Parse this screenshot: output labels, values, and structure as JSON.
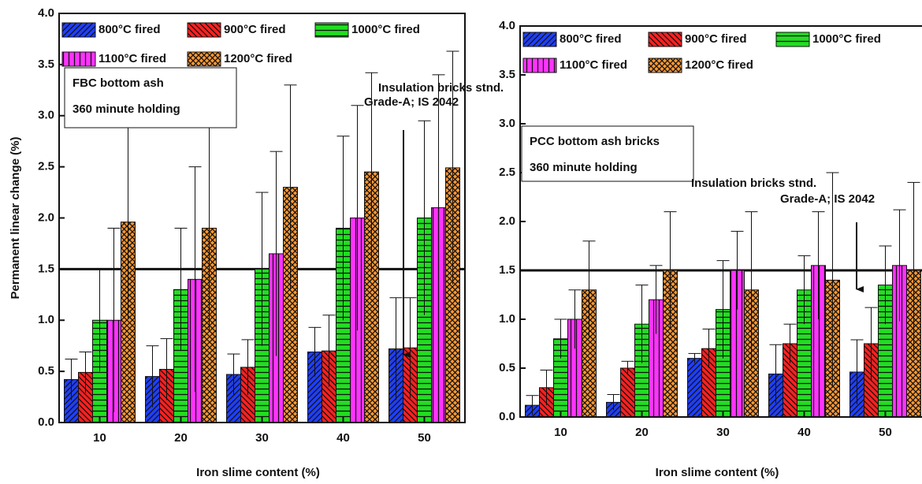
{
  "chart_data": [
    {
      "type": "bar",
      "x_label": "Iron slime content (%)",
      "y_label": "Permanent linear change (%)",
      "categories": [
        "10",
        "20",
        "30",
        "40",
        "50"
      ],
      "ylim": [
        0,
        4
      ],
      "yticks": [
        {
          "value": 0,
          "label": "0.0"
        },
        0.5,
        {
          "value": 1,
          "label": "1.0"
        },
        1.5,
        {
          "value": 2,
          "label": "2.0"
        },
        2.5,
        {
          "value": 3,
          "label": "3.0"
        },
        3.5,
        {
          "value": 4,
          "label": "4.0"
        }
      ],
      "reference_line": 1.5,
      "info_box": [
        "FBC bottom ash",
        "360 minute holding"
      ],
      "standard_label": [
        "Insulation bricks stnd.",
        "Grade-A; IS 2042"
      ],
      "series": [
        {
          "name": "800°C fired",
          "color": "#1f3fff",
          "hatch": "/",
          "values": [
            0.42,
            0.45,
            0.47,
            0.69,
            0.72
          ],
          "errors": [
            0.2,
            0.3,
            0.2,
            0.24,
            0.5
          ]
        },
        {
          "name": "900°C fired",
          "color": "#ff2020",
          "hatch": "\\",
          "values": [
            0.49,
            0.52,
            0.54,
            0.7,
            0.73
          ],
          "errors": [
            0.2,
            0.3,
            0.27,
            0.35,
            0.49
          ]
        },
        {
          "name": "1000°C fired",
          "color": "#22dd22",
          "hatch": "-",
          "values": [
            1.0,
            1.3,
            1.5,
            1.9,
            2.0
          ],
          "errors": [
            0.5,
            0.6,
            0.75,
            0.9,
            0.95
          ]
        },
        {
          "name": "1100°C fired",
          "color": "#ff33ff",
          "hatch": "|",
          "values": [
            1.0,
            1.4,
            1.65,
            2.0,
            2.1
          ],
          "errors": [
            0.9,
            1.1,
            1.0,
            1.1,
            1.3
          ]
        },
        {
          "name": "1200°C fired",
          "color": "#ff9933",
          "hatch": "x",
          "values": [
            1.96,
            1.9,
            2.3,
            2.45,
            2.49
          ],
          "errors": [
            0.94,
            1.0,
            1.0,
            0.97,
            1.14
          ]
        }
      ]
    },
    {
      "type": "bar",
      "x_label": "Iron slime content (%)",
      "categories": [
        "10",
        "20",
        "30",
        "40",
        "50"
      ],
      "ylim": [
        0,
        4
      ],
      "yticks": [
        {
          "value": 0,
          "label": "0.0"
        },
        0.5,
        {
          "value": 1,
          "label": "1.0"
        },
        1.5,
        {
          "value": 2,
          "label": "2.0"
        },
        2.5,
        {
          "value": 3,
          "label": "3.0"
        },
        3.5,
        {
          "value": 4,
          "label": "4.0"
        }
      ],
      "reference_line": 1.5,
      "info_box": [
        "PCC bottom ash bricks",
        "360 minute holding"
      ],
      "standard_label": [
        "Insulation bricks stnd.",
        "Grade-A; IS 2042"
      ],
      "series": [
        {
          "name": "800°C fired",
          "color": "#1f3fff",
          "hatch": "/",
          "values": [
            0.12,
            0.15,
            0.6,
            0.44,
            0.46
          ],
          "errors": [
            0.1,
            0.08,
            0.05,
            0.3,
            0.33
          ]
        },
        {
          "name": "900°C fired",
          "color": "#ff2020",
          "hatch": "\\",
          "values": [
            0.3,
            0.5,
            0.7,
            0.75,
            0.75
          ],
          "errors": [
            0.18,
            0.07,
            0.2,
            0.2,
            0.37
          ]
        },
        {
          "name": "1000°C fired",
          "color": "#22dd22",
          "hatch": "-",
          "values": [
            0.8,
            0.95,
            1.1,
            1.3,
            1.35
          ],
          "errors": [
            0.2,
            0.4,
            0.5,
            0.35,
            0.4
          ]
        },
        {
          "name": "1100°C fired",
          "color": "#ff33ff",
          "hatch": "|",
          "values": [
            1.0,
            1.2,
            1.5,
            1.55,
            1.55
          ],
          "errors": [
            0.3,
            0.35,
            0.4,
            0.55,
            0.57
          ]
        },
        {
          "name": "1200°C fired",
          "color": "#ff9933",
          "hatch": "x",
          "values": [
            1.3,
            1.5,
            1.3,
            1.4,
            1.5
          ],
          "errors": [
            0.5,
            0.6,
            0.8,
            1.1,
            0.9
          ]
        }
      ]
    }
  ]
}
